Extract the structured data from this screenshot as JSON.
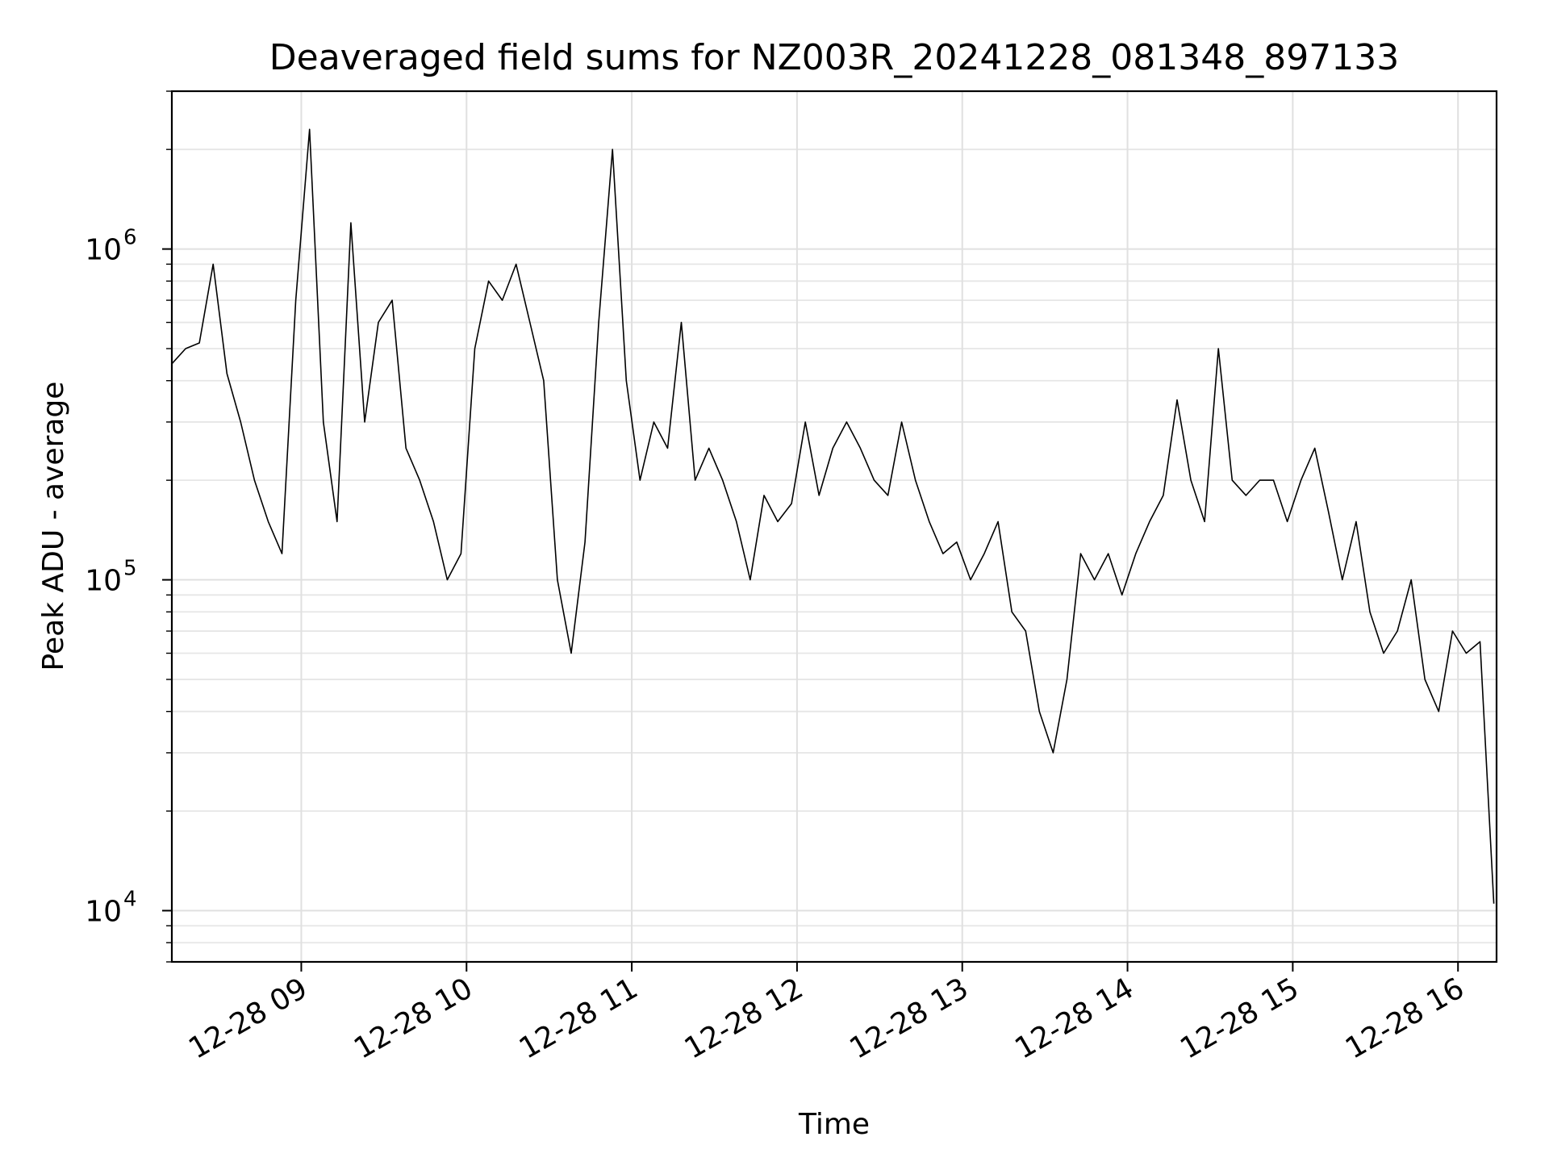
{
  "chart_data": {
    "type": "line",
    "title": "Deaveraged field sums for NZ003R_20241228_081348_897133",
    "xlabel": "Time",
    "ylabel": "Peak ADU - average",
    "x_scale": "time",
    "y_scale": "log",
    "xlim": [
      "12-28 08:13",
      "12-28 16:14"
    ],
    "ylim": [
      7000,
      3000000
    ],
    "x_ticks": [
      "12-28 09",
      "12-28 10",
      "12-28 11",
      "12-28 12",
      "12-28 13",
      "12-28 14",
      "12-28 15",
      "12-28 16"
    ],
    "y_ticks": [
      {
        "base": "10",
        "exp": "4",
        "value": 10000
      },
      {
        "base": "10",
        "exp": "5",
        "value": 100000
      },
      {
        "base": "10",
        "exp": "6",
        "value": 1000000
      }
    ],
    "grid": true,
    "line_color": "#000000",
    "series": [
      {
        "x": [
          "12-28 08:13",
          "12-28 08:18",
          "12-28 08:23",
          "12-28 08:28",
          "12-28 08:33",
          "12-28 08:38",
          "12-28 08:43",
          "12-28 08:48",
          "12-28 08:53",
          "12-28 08:58",
          "12-28 09:03",
          "12-28 09:08",
          "12-28 09:13",
          "12-28 09:18",
          "12-28 09:23",
          "12-28 09:28",
          "12-28 09:33",
          "12-28 09:38",
          "12-28 09:43",
          "12-28 09:48",
          "12-28 09:53",
          "12-28 09:58",
          "12-28 10:03",
          "12-28 10:08",
          "12-28 10:13",
          "12-28 10:18",
          "12-28 10:23",
          "12-28 10:28",
          "12-28 10:33",
          "12-28 10:38",
          "12-28 10:43",
          "12-28 10:48",
          "12-28 10:53",
          "12-28 10:58",
          "12-28 11:03",
          "12-28 11:08",
          "12-28 11:13",
          "12-28 11:18",
          "12-28 11:23",
          "12-28 11:28",
          "12-28 11:33",
          "12-28 11:38",
          "12-28 11:43",
          "12-28 11:48",
          "12-28 11:53",
          "12-28 11:58",
          "12-28 12:03",
          "12-28 12:08",
          "12-28 12:13",
          "12-28 12:18",
          "12-28 12:23",
          "12-28 12:28",
          "12-28 12:33",
          "12-28 12:38",
          "12-28 12:43",
          "12-28 12:48",
          "12-28 12:53",
          "12-28 12:58",
          "12-28 13:03",
          "12-28 13:08",
          "12-28 13:13",
          "12-28 13:18",
          "12-28 13:23",
          "12-28 13:28",
          "12-28 13:33",
          "12-28 13:38",
          "12-28 13:43",
          "12-28 13:48",
          "12-28 13:53",
          "12-28 13:58",
          "12-28 14:03",
          "12-28 14:08",
          "12-28 14:13",
          "12-28 14:18",
          "12-28 14:23",
          "12-28 14:28",
          "12-28 14:33",
          "12-28 14:38",
          "12-28 14:43",
          "12-28 14:48",
          "12-28 14:53",
          "12-28 14:58",
          "12-28 15:03",
          "12-28 15:08",
          "12-28 15:13",
          "12-28 15:18",
          "12-28 15:23",
          "12-28 15:28",
          "12-28 15:33",
          "12-28 15:38",
          "12-28 15:43",
          "12-28 15:48",
          "12-28 15:53",
          "12-28 15:58",
          "12-28 16:03",
          "12-28 16:08",
          "12-28 16:13"
        ],
        "y": [
          450000,
          500000,
          520000,
          900000,
          420000,
          300000,
          200000,
          150000,
          120000,
          700000,
          2300000,
          300000,
          150000,
          1200000,
          300000,
          600000,
          700000,
          250000,
          200000,
          150000,
          100000,
          120000,
          500000,
          800000,
          700000,
          900000,
          600000,
          400000,
          100000,
          60000,
          130000,
          600000,
          2000000,
          400000,
          200000,
          300000,
          250000,
          600000,
          200000,
          250000,
          200000,
          150000,
          100000,
          180000,
          150000,
          170000,
          300000,
          180000,
          250000,
          300000,
          250000,
          200000,
          180000,
          300000,
          200000,
          150000,
          120000,
          130000,
          100000,
          120000,
          150000,
          80000,
          70000,
          40000,
          30000,
          50000,
          120000,
          100000,
          120000,
          90000,
          120000,
          150000,
          180000,
          350000,
          200000,
          150000,
          500000,
          200000,
          180000,
          200000,
          200000,
          150000,
          200000,
          250000,
          160000,
          100000,
          150000,
          80000,
          60000,
          70000,
          100000,
          50000,
          40000,
          70000,
          60000,
          65000,
          10500
        ]
      }
    ]
  }
}
